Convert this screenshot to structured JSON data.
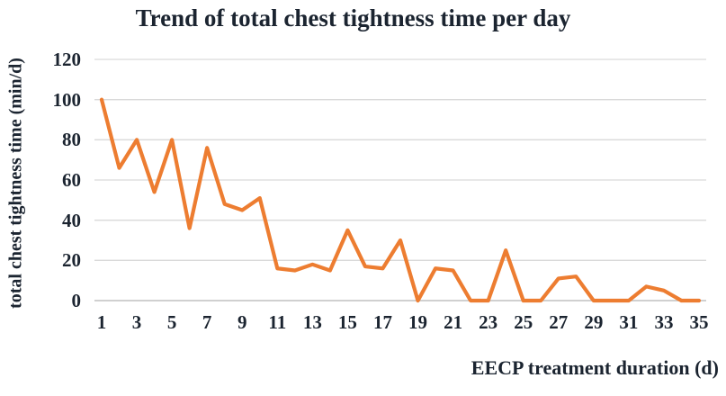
{
  "chart_data": {
    "type": "line",
    "title": "Trend of total chest tightness time per day",
    "xlabel": "EECP treatment duration (d)",
    "ylabel": "total chest tightness time (min/d)",
    "x": [
      1,
      2,
      3,
      4,
      5,
      6,
      7,
      8,
      9,
      10,
      11,
      12,
      13,
      14,
      15,
      16,
      17,
      18,
      19,
      20,
      21,
      22,
      23,
      24,
      25,
      26,
      27,
      28,
      29,
      30,
      31,
      32,
      33,
      34,
      35
    ],
    "series": [
      {
        "name": "total chest tightness time per day",
        "values": [
          100,
          66,
          80,
          54,
          80,
          36,
          76,
          48,
          45,
          51,
          16,
          15,
          18,
          15,
          35,
          17,
          16,
          30,
          0,
          16,
          15,
          0,
          0,
          25,
          0,
          0,
          11,
          12,
          0,
          0,
          0,
          7,
          5,
          0,
          0
        ]
      }
    ],
    "xticks": [
      1,
      3,
      5,
      7,
      9,
      11,
      13,
      15,
      17,
      19,
      21,
      23,
      25,
      27,
      29,
      31,
      33,
      35
    ],
    "yticks": [
      0,
      20,
      40,
      60,
      80,
      100,
      120
    ],
    "ylim": [
      0,
      120
    ],
    "grid": "horizontal",
    "legend": "none",
    "colors": {
      "line": "#ED7D31",
      "grid": "#D9D9D9",
      "baseline": "#C0C0C0",
      "text": "#1B2430"
    }
  }
}
